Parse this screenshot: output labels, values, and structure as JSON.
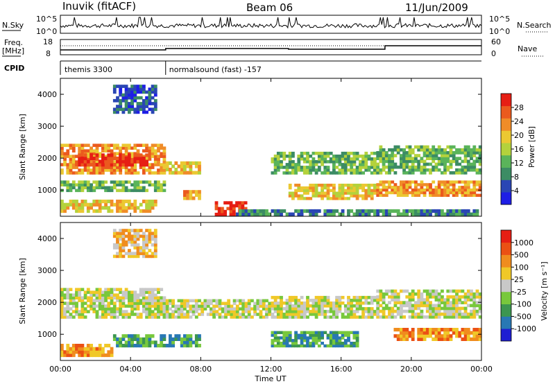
{
  "header": {
    "station": "Inuvik (fitACF)",
    "beam": "Beam 06",
    "date": "11/Jun/2009"
  },
  "summary_panel": {
    "nsky_label": "N.Sky",
    "nsky_ticks": [
      "10^5",
      "10^0"
    ],
    "nsearch_label": "N.Search",
    "nsearch_ticks": [
      "10^5",
      "10^0"
    ],
    "freq_label": "Freq.",
    "freq_unit": "[MHz]",
    "freq_ticks": [
      "18",
      "8"
    ],
    "nave_label": "Nave",
    "nave_ticks": [
      "60",
      "0"
    ],
    "cpid_label": "CPID",
    "cpid_segments": [
      {
        "name": "themis 3300",
        "start_hour": 0,
        "end_hour": 6
      },
      {
        "name": "normalsound (fast) -157",
        "start_hour": 6,
        "end_hour": 24
      }
    ]
  },
  "chart_data": [
    {
      "type": "heatmap",
      "panel": "power",
      "ylabel": "Slant Range [km]",
      "yticks": [
        1000,
        2000,
        3000,
        4000
      ],
      "ylim": [
        180,
        4500
      ],
      "xlim": [
        0,
        24
      ],
      "colorbar": {
        "label": "Power [dB]",
        "ticks": [
          "28",
          "24",
          "20",
          "16",
          "12",
          "8",
          "4"
        ],
        "colors": [
          "#1e1ee6",
          "#2a46b4",
          "#3c8c64",
          "#5ab45a",
          "#b4d23c",
          "#ebc832",
          "#f08c28",
          "#eb5a1e",
          "#e61e14"
        ]
      },
      "regions": [
        {
          "t0": 0.0,
          "t1": 6.0,
          "r0": 1500,
          "r1": 2450,
          "level": 6
        },
        {
          "t0": 1.0,
          "t1": 5.0,
          "r0": 1750,
          "r1": 2150,
          "level": 8
        },
        {
          "t0": 0.0,
          "t1": 6.0,
          "r0": 950,
          "r1": 1300,
          "level": 3
        },
        {
          "t0": 0.0,
          "t1": 5.5,
          "r0": 300,
          "r1": 700,
          "level": 5
        },
        {
          "t0": 3.0,
          "t1": 5.5,
          "r0": 3400,
          "r1": 4300,
          "level": 1
        },
        {
          "t0": 6.0,
          "t1": 8.0,
          "r0": 1500,
          "r1": 1900,
          "level": 5
        },
        {
          "t0": 7.0,
          "t1": 8.0,
          "r0": 700,
          "r1": 1000,
          "level": 6
        },
        {
          "t0": 8.8,
          "t1": 10.8,
          "r0": 200,
          "r1": 650,
          "level": 8
        },
        {
          "t0": 10.0,
          "t1": 24.0,
          "r0": 200,
          "r1": 400,
          "level": 2
        },
        {
          "t0": 12.0,
          "t1": 18.0,
          "r0": 1500,
          "r1": 2200,
          "level": 3
        },
        {
          "t0": 13.0,
          "t1": 18.0,
          "r0": 700,
          "r1": 1200,
          "level": 5
        },
        {
          "t0": 18.0,
          "t1": 24.0,
          "r0": 1500,
          "r1": 2400,
          "level": 3
        },
        {
          "t0": 18.0,
          "t1": 24.0,
          "r0": 800,
          "r1": 1300,
          "level": 6
        }
      ]
    },
    {
      "type": "heatmap",
      "panel": "velocity",
      "ylabel": "Slant Range [km]",
      "xlabel": "Time UT",
      "xticks": [
        "00:00",
        "04:00",
        "08:00",
        "12:00",
        "16:00",
        "20:00",
        "00:00"
      ],
      "yticks": [
        1000,
        2000,
        3000,
        4000
      ],
      "ylim": [
        180,
        4500
      ],
      "xlim": [
        0,
        24
      ],
      "colorbar": {
        "label": "Velocity [m s⁻¹]",
        "ticks": [
          "1000",
          "500",
          "100",
          "25",
          "-25",
          "-100",
          "-500",
          "-1000"
        ],
        "colors": [
          "#1e1ed2",
          "#2878b4",
          "#3c9650",
          "#78c83c",
          "#c8c8c8",
          "#f0c828",
          "#f08c1e",
          "#eb5014",
          "#e61e14"
        ]
      },
      "regions": [
        {
          "t0": 0.0,
          "t1": 6.0,
          "r0": 1500,
          "r1": 2450,
          "level": 4
        },
        {
          "t0": 3.0,
          "t1": 5.5,
          "r0": 3400,
          "r1": 4300,
          "level": 5
        },
        {
          "t0": 0.0,
          "t1": 3.0,
          "r0": 300,
          "r1": 700,
          "level": 6
        },
        {
          "t0": 3.0,
          "t1": 8.0,
          "r0": 600,
          "r1": 1000,
          "level": 2
        },
        {
          "t0": 6.0,
          "t1": 12.0,
          "r0": 1500,
          "r1": 2100,
          "level": 4
        },
        {
          "t0": 12.0,
          "t1": 18.0,
          "r0": 1500,
          "r1": 2200,
          "level": 4
        },
        {
          "t0": 12.0,
          "t1": 17.0,
          "r0": 600,
          "r1": 1100,
          "level": 2
        },
        {
          "t0": 18.0,
          "t1": 24.0,
          "r0": 1500,
          "r1": 2400,
          "level": 4
        },
        {
          "t0": 19.0,
          "t1": 24.0,
          "r0": 800,
          "r1": 1200,
          "level": 6
        }
      ]
    }
  ]
}
